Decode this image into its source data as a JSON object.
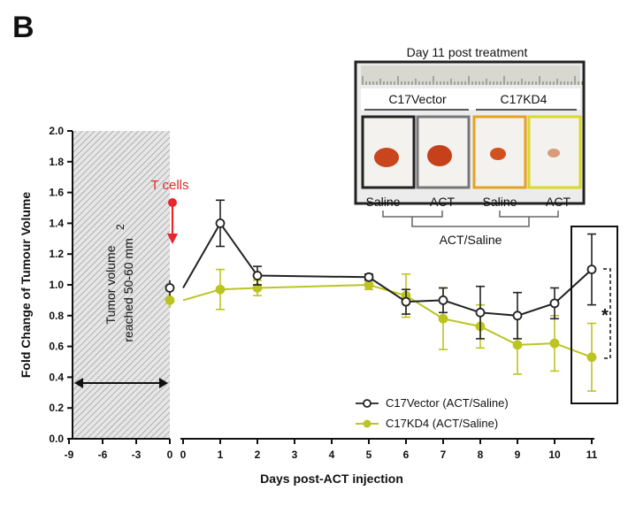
{
  "panel_letter": "B",
  "chart_data": {
    "type": "line",
    "title": "",
    "xlabel": "Days post-ACT injection",
    "ylabel": "Fold Change of Tumour Volume",
    "ylim": [
      0,
      2.0
    ],
    "yticks": [
      "0.0",
      "0.2",
      "0.4",
      "0.6",
      "0.8",
      "1.0",
      "1.2",
      "1.4",
      "1.6",
      "1.8",
      "2.0"
    ],
    "xticks_pre": [
      "-9",
      "-6",
      "-3",
      "0"
    ],
    "xticks_post": [
      "0",
      "1",
      "2",
      "3",
      "4",
      "5",
      "6",
      "7",
      "8",
      "9",
      "10",
      "11"
    ],
    "pre_period_label_line1": "Tumor volume",
    "pre_period_label_line2": "reached 50-60 mm",
    "pre_period_label_sup": "2",
    "tcells_label": "T cells",
    "legend_position": "bottom-right",
    "series": [
      {
        "name": "C17Vector (ACT/Saline)",
        "color": "#222222",
        "marker": "open-circle",
        "baseline": {
          "x": 0,
          "y": 0.98,
          "err": 0.05
        },
        "x": [
          1,
          2,
          5,
          6,
          7,
          8,
          9,
          10,
          11
        ],
        "y": [
          1.4,
          1.06,
          1.05,
          0.89,
          0.9,
          0.82,
          0.8,
          0.88,
          1.1
        ],
        "err": [
          0.15,
          0.06,
          0.02,
          0.08,
          0.08,
          0.17,
          0.15,
          0.1,
          0.23
        ]
      },
      {
        "name": "C17KD4 (ACT/Saline)",
        "color": "#bcc421",
        "marker": "filled-circle",
        "baseline": {
          "x": 0,
          "y": 0.9,
          "err": 0.05
        },
        "x": [
          1,
          2,
          5,
          6,
          7,
          8,
          9,
          10,
          11
        ],
        "y": [
          0.97,
          0.98,
          1.0,
          0.93,
          0.78,
          0.73,
          0.61,
          0.62,
          0.53
        ],
        "err": [
          0.13,
          0.05,
          0.03,
          0.14,
          0.2,
          0.14,
          0.19,
          0.18,
          0.22
        ]
      }
    ],
    "significance_label": "*"
  },
  "inset": {
    "title": "Day 11 post treatment",
    "group_left": "C17Vector",
    "group_right": "C17KD4",
    "labels": [
      "Saline",
      "ACT",
      "Saline",
      "ACT"
    ],
    "bracket_label": "ACT/Saline",
    "frame_colors": [
      "#222222",
      "#777777",
      "#e6a21e",
      "#d8d82a"
    ]
  }
}
